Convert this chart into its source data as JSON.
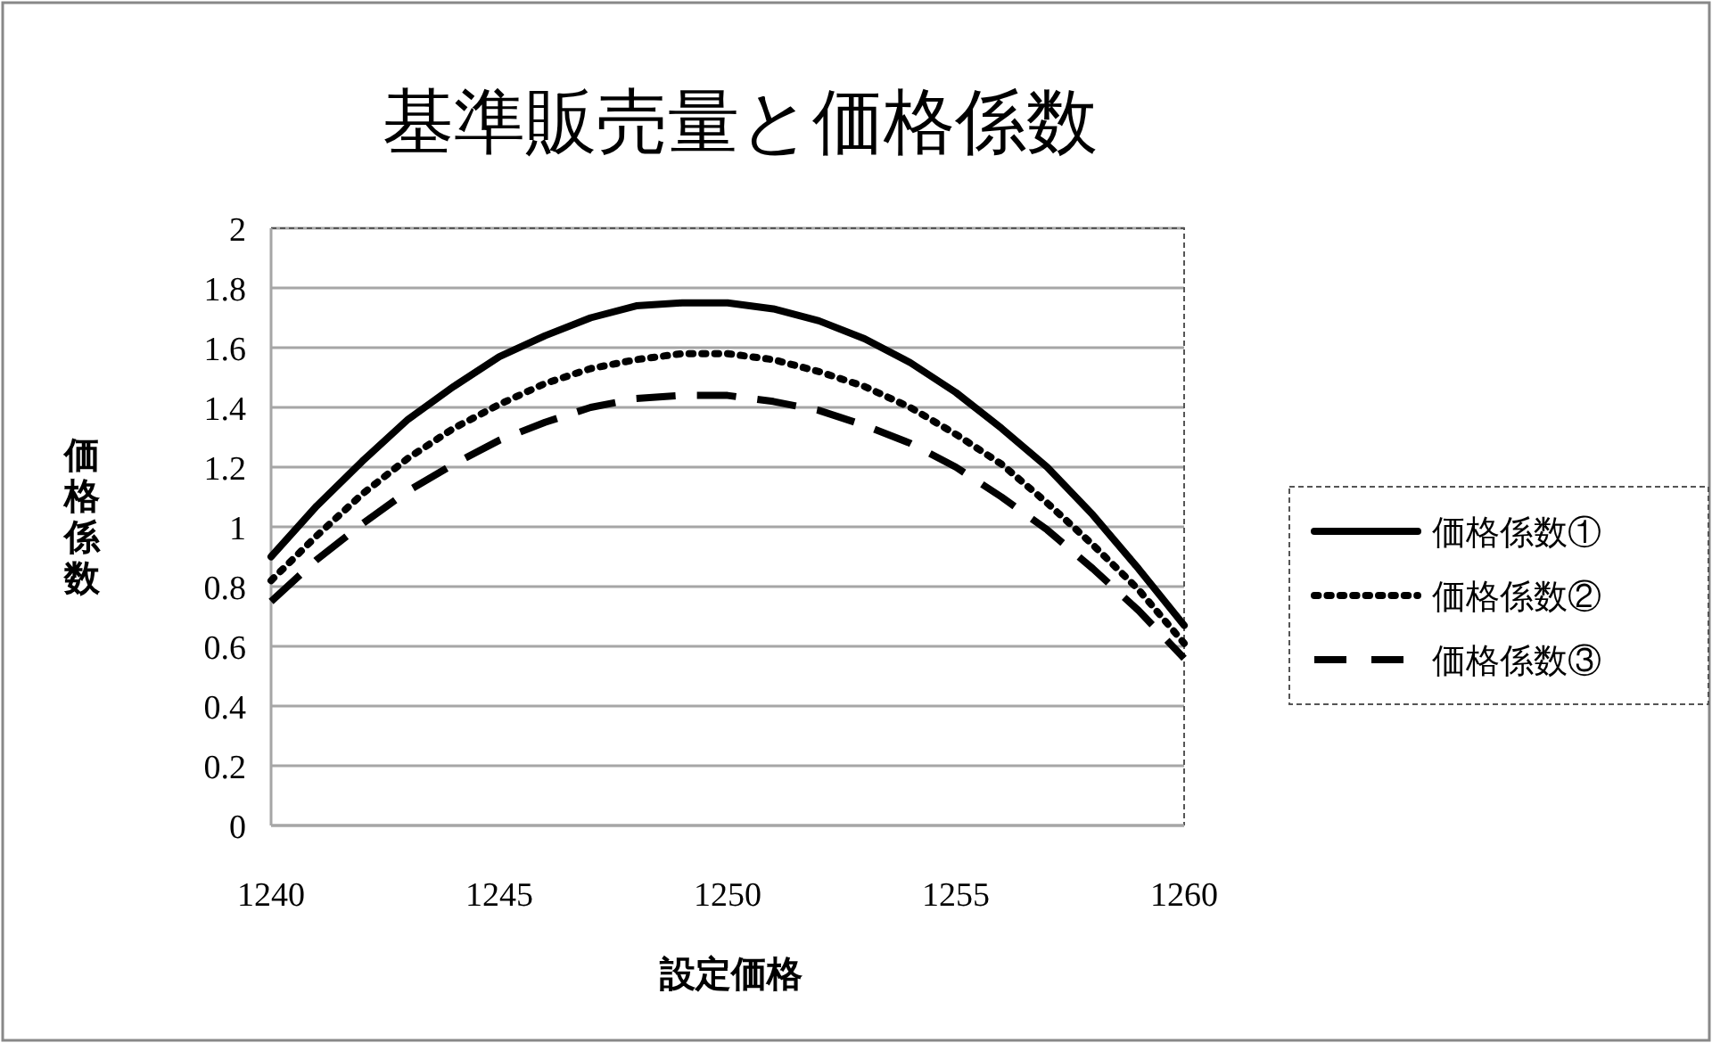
{
  "chart_data": {
    "type": "line",
    "title": "基準販売量と価格係数",
    "xlabel": "設定価格",
    "ylabel": "価格係数",
    "x": [
      1240,
      1241,
      1242,
      1243,
      1244,
      1245,
      1246,
      1247,
      1248,
      1249,
      1250,
      1251,
      1252,
      1253,
      1254,
      1255,
      1256,
      1257,
      1258,
      1259,
      1260
    ],
    "series": [
      {
        "name": "価格係数①",
        "color": "#000000",
        "line_style": "solid",
        "values": [
          0.9,
          1.07,
          1.22,
          1.36,
          1.47,
          1.57,
          1.64,
          1.7,
          1.74,
          1.75,
          1.75,
          1.73,
          1.69,
          1.63,
          1.55,
          1.45,
          1.33,
          1.2,
          1.04,
          0.86,
          0.67
        ]
      },
      {
        "name": "価格係数②",
        "color": "#000000",
        "line_style": "dotted",
        "values": [
          0.82,
          0.97,
          1.11,
          1.23,
          1.33,
          1.41,
          1.48,
          1.53,
          1.56,
          1.58,
          1.58,
          1.56,
          1.52,
          1.47,
          1.4,
          1.31,
          1.21,
          1.08,
          0.94,
          0.79,
          0.61
        ]
      },
      {
        "name": "価格係数③",
        "color": "#000000",
        "line_style": "dashed",
        "values": [
          0.75,
          0.89,
          1.01,
          1.12,
          1.21,
          1.29,
          1.35,
          1.4,
          1.43,
          1.44,
          1.44,
          1.42,
          1.39,
          1.34,
          1.28,
          1.2,
          1.1,
          0.99,
          0.86,
          0.72,
          0.56
        ]
      }
    ],
    "xlim": [
      1240,
      1260
    ],
    "xticks": [
      1240,
      1245,
      1250,
      1255,
      1260
    ],
    "ylim": [
      0,
      2
    ],
    "yticks": [
      0,
      0.2,
      0.4,
      0.6,
      0.8,
      1,
      1.2,
      1.4,
      1.6,
      1.8,
      2
    ],
    "grid": "y",
    "legend": "right"
  }
}
